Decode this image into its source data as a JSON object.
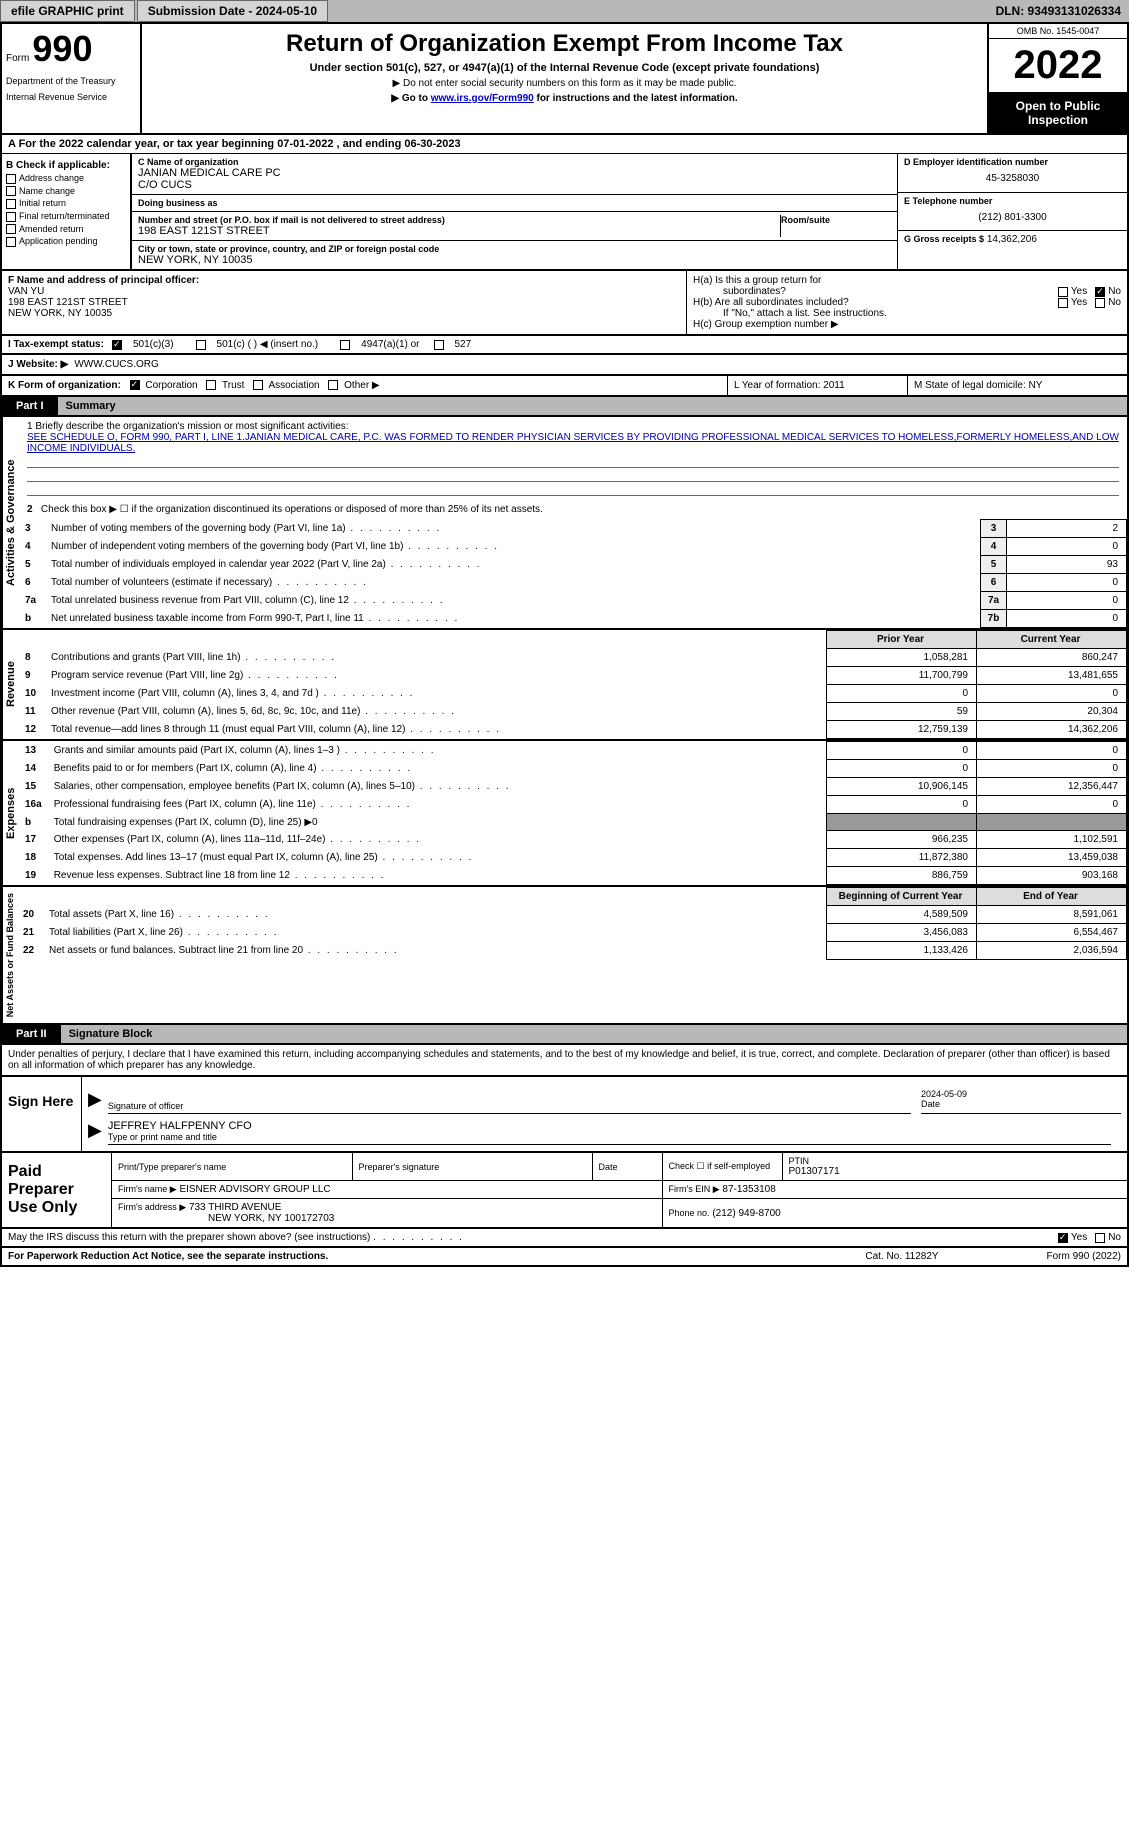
{
  "topbar": {
    "efile": "efile GRAPHIC print",
    "submission_label": "Submission Date - 2024-05-10",
    "dln_label": "DLN: 93493131026334"
  },
  "header": {
    "form_prefix": "Form",
    "form_num": "990",
    "dept": "Department of the Treasury",
    "irs": "Internal Revenue Service",
    "title": "Return of Organization Exempt From Income Tax",
    "subtitle": "Under section 501(c), 527, or 4947(a)(1) of the Internal Revenue Code (except private foundations)",
    "note1": "▶ Do not enter social security numbers on this form as it may be made public.",
    "note2_pre": "▶ Go to ",
    "note2_link": "www.irs.gov/Form990",
    "note2_post": " for instructions and the latest information.",
    "omb": "OMB No. 1545-0047",
    "year": "2022",
    "inspect": "Open to Public Inspection"
  },
  "line_a": "A For the 2022 calendar year, or tax year beginning 07-01-2022    , and ending 06-30-2023",
  "b": {
    "label": "B Check if applicable:",
    "options": [
      "Address change",
      "Name change",
      "Initial return",
      "Final return/terminated",
      "Amended return",
      "Application pending"
    ]
  },
  "c": {
    "name_label": "C Name of organization",
    "name": "JANIAN MEDICAL CARE PC",
    "name2": "C/O CUCS",
    "dba_label": "Doing business as",
    "dba": "",
    "addr_label": "Number and street (or P.O. box if mail is not delivered to street address)",
    "addr": "198 EAST 121ST STREET",
    "suite_label": "Room/suite",
    "suite": "",
    "city_label": "City or town, state or province, country, and ZIP or foreign postal code",
    "city": "NEW YORK, NY  10035"
  },
  "d": {
    "ein_label": "D Employer identification number",
    "ein": "45-3258030",
    "phone_label": "E Telephone number",
    "phone": "(212) 801-3300",
    "gross_label": "G Gross receipts $",
    "gross": "14,362,206"
  },
  "f": {
    "label": "F  Name and address of principal officer:",
    "name": "VAN YU",
    "addr1": "198 EAST 121ST STREET",
    "addr2": "NEW YORK, NY  10035"
  },
  "h": {
    "a": "H(a)  Is this a group return for",
    "a2": "subordinates?",
    "b": "H(b)  Are all subordinates included?",
    "b2": "If \"No,\" attach a list. See instructions.",
    "c": "H(c)  Group exemption number ▶",
    "yes": "Yes",
    "no": "No"
  },
  "i": {
    "label": "I    Tax-exempt status:",
    "opt1": "501(c)(3)",
    "opt2": "501(c) (   ) ◀ (insert no.)",
    "opt3": "4947(a)(1) or",
    "opt4": "527"
  },
  "j": {
    "label": "J   Website: ▶",
    "value": "WWW.CUCS.ORG"
  },
  "k": {
    "label": "K Form of organization:",
    "corp": "Corporation",
    "trust": "Trust",
    "assoc": "Association",
    "other": "Other ▶",
    "l": "L Year of formation: 2011",
    "m": "M State of legal domicile: NY"
  },
  "part1": {
    "num": "Part I",
    "title": "Summary"
  },
  "vlabel": {
    "ag": "Activities & Governance",
    "rev": "Revenue",
    "exp": "Expenses",
    "na": "Net Assets or Fund Balances"
  },
  "mission": {
    "label": "1   Briefly describe the organization's mission or most significant activities:",
    "text": "SEE SCHEDULE O, FORM 990, PART I, LINE 1.JANIAN MEDICAL CARE, P.C. WAS FORMED TO RENDER PHYSICIAN SERVICES BY PROVIDING PROFESSIONAL MEDICAL SERVICES TO HOMELESS,FORMERLY HOMELESS,AND LOW INCOME INDIVIDUALS."
  },
  "line2": "Check this box ▶ ☐  if the organization discontinued its operations or disposed of more than 25% of its net assets.",
  "rows_ag": [
    {
      "n": "3",
      "t": "Number of voting members of the governing body (Part VI, line 1a)",
      "box": "3",
      "v": "2"
    },
    {
      "n": "4",
      "t": "Number of independent voting members of the governing body (Part VI, line 1b)",
      "box": "4",
      "v": "0"
    },
    {
      "n": "5",
      "t": "Total number of individuals employed in calendar year 2022 (Part V, line 2a)",
      "box": "5",
      "v": "93"
    },
    {
      "n": "6",
      "t": "Total number of volunteers (estimate if necessary)",
      "box": "6",
      "v": "0"
    },
    {
      "n": "7a",
      "t": "Total unrelated business revenue from Part VIII, column (C), line 12",
      "box": "7a",
      "v": "0"
    },
    {
      "n": "b",
      "t": "Net unrelated business taxable income from Form 990-T, Part I, line 11",
      "box": "7b",
      "v": "0"
    }
  ],
  "col_headers": {
    "prior": "Prior Year",
    "current": "Current Year"
  },
  "rows_rev": [
    {
      "n": "8",
      "t": "Contributions and grants (Part VIII, line 1h)",
      "p": "1,058,281",
      "c": "860,247"
    },
    {
      "n": "9",
      "t": "Program service revenue (Part VIII, line 2g)",
      "p": "11,700,799",
      "c": "13,481,655"
    },
    {
      "n": "10",
      "t": "Investment income (Part VIII, column (A), lines 3, 4, and 7d )",
      "p": "0",
      "c": "0"
    },
    {
      "n": "11",
      "t": "Other revenue (Part VIII, column (A), lines 5, 6d, 8c, 9c, 10c, and 11e)",
      "p": "59",
      "c": "20,304"
    },
    {
      "n": "12",
      "t": "Total revenue—add lines 8 through 11 (must equal Part VIII, column (A), line 12)",
      "p": "12,759,139",
      "c": "14,362,206"
    }
  ],
  "rows_exp": [
    {
      "n": "13",
      "t": "Grants and similar amounts paid (Part IX, column (A), lines 1–3 )",
      "p": "0",
      "c": "0"
    },
    {
      "n": "14",
      "t": "Benefits paid to or for members (Part IX, column (A), line 4)",
      "p": "0",
      "c": "0"
    },
    {
      "n": "15",
      "t": "Salaries, other compensation, employee benefits (Part IX, column (A), lines 5–10)",
      "p": "10,906,145",
      "c": "12,356,447"
    },
    {
      "n": "16a",
      "t": "Professional fundraising fees (Part IX, column (A), line 11e)",
      "p": "0",
      "c": "0"
    },
    {
      "n": "b",
      "t": "Total fundraising expenses (Part IX, column (D), line 25) ▶0",
      "p": "",
      "c": "",
      "gray": true
    },
    {
      "n": "17",
      "t": "Other expenses (Part IX, column (A), lines 11a–11d, 11f–24e)",
      "p": "966,235",
      "c": "1,102,591"
    },
    {
      "n": "18",
      "t": "Total expenses. Add lines 13–17 (must equal Part IX, column (A), line 25)",
      "p": "11,872,380",
      "c": "13,459,038"
    },
    {
      "n": "19",
      "t": "Revenue less expenses. Subtract line 18 from line 12",
      "p": "886,759",
      "c": "903,168"
    }
  ],
  "col_headers2": {
    "begin": "Beginning of Current Year",
    "end": "End of Year"
  },
  "rows_na": [
    {
      "n": "20",
      "t": "Total assets (Part X, line 16)",
      "p": "4,589,509",
      "c": "8,591,061"
    },
    {
      "n": "21",
      "t": "Total liabilities (Part X, line 26)",
      "p": "3,456,083",
      "c": "6,554,467"
    },
    {
      "n": "22",
      "t": "Net assets or fund balances. Subtract line 21 from line 20",
      "p": "1,133,426",
      "c": "2,036,594"
    }
  ],
  "part2": {
    "num": "Part II",
    "title": "Signature Block"
  },
  "declare": "Under penalties of perjury, I declare that I have examined this return, including accompanying schedules and statements, and to the best of my knowledge and belief, it is true, correct, and complete. Declaration of preparer (other than officer) is based on all information of which preparer has any knowledge.",
  "sign": {
    "left": "Sign Here",
    "sig_label": "Signature of officer",
    "date_label": "Date",
    "date": "2024-05-09",
    "name_label": "Type or print name and title",
    "name": "JEFFREY HALFPENNY CFO"
  },
  "prep": {
    "left": "Paid Preparer Use Only",
    "h1": "Print/Type preparer's name",
    "h2": "Preparer's signature",
    "h3": "Date",
    "h4": "Check ☐ if self-employed",
    "h5_label": "PTIN",
    "h5": "P01307171",
    "firm_name_label": "Firm's name     ▶",
    "firm_name": "EISNER ADVISORY GROUP LLC",
    "firm_ein_label": "Firm's EIN ▶",
    "firm_ein": "87-1353108",
    "firm_addr_label": "Firm's address ▶",
    "firm_addr": "733 THIRD AVENUE",
    "firm_addr2": "NEW YORK, NY  100172703",
    "phone_label": "Phone no.",
    "phone": "(212) 949-8700"
  },
  "discuss": "May the IRS discuss this return with the preparer shown above? (see instructions)",
  "discuss_yes": "Yes",
  "discuss_no": "No",
  "footer": {
    "f1": "For Paperwork Reduction Act Notice, see the separate instructions.",
    "f2": "Cat. No. 11282Y",
    "f3": "Form 990 (2022)"
  },
  "colors": {
    "topbar_bg": "#b8b8b8",
    "link": "#0000cc",
    "black": "#000000"
  }
}
